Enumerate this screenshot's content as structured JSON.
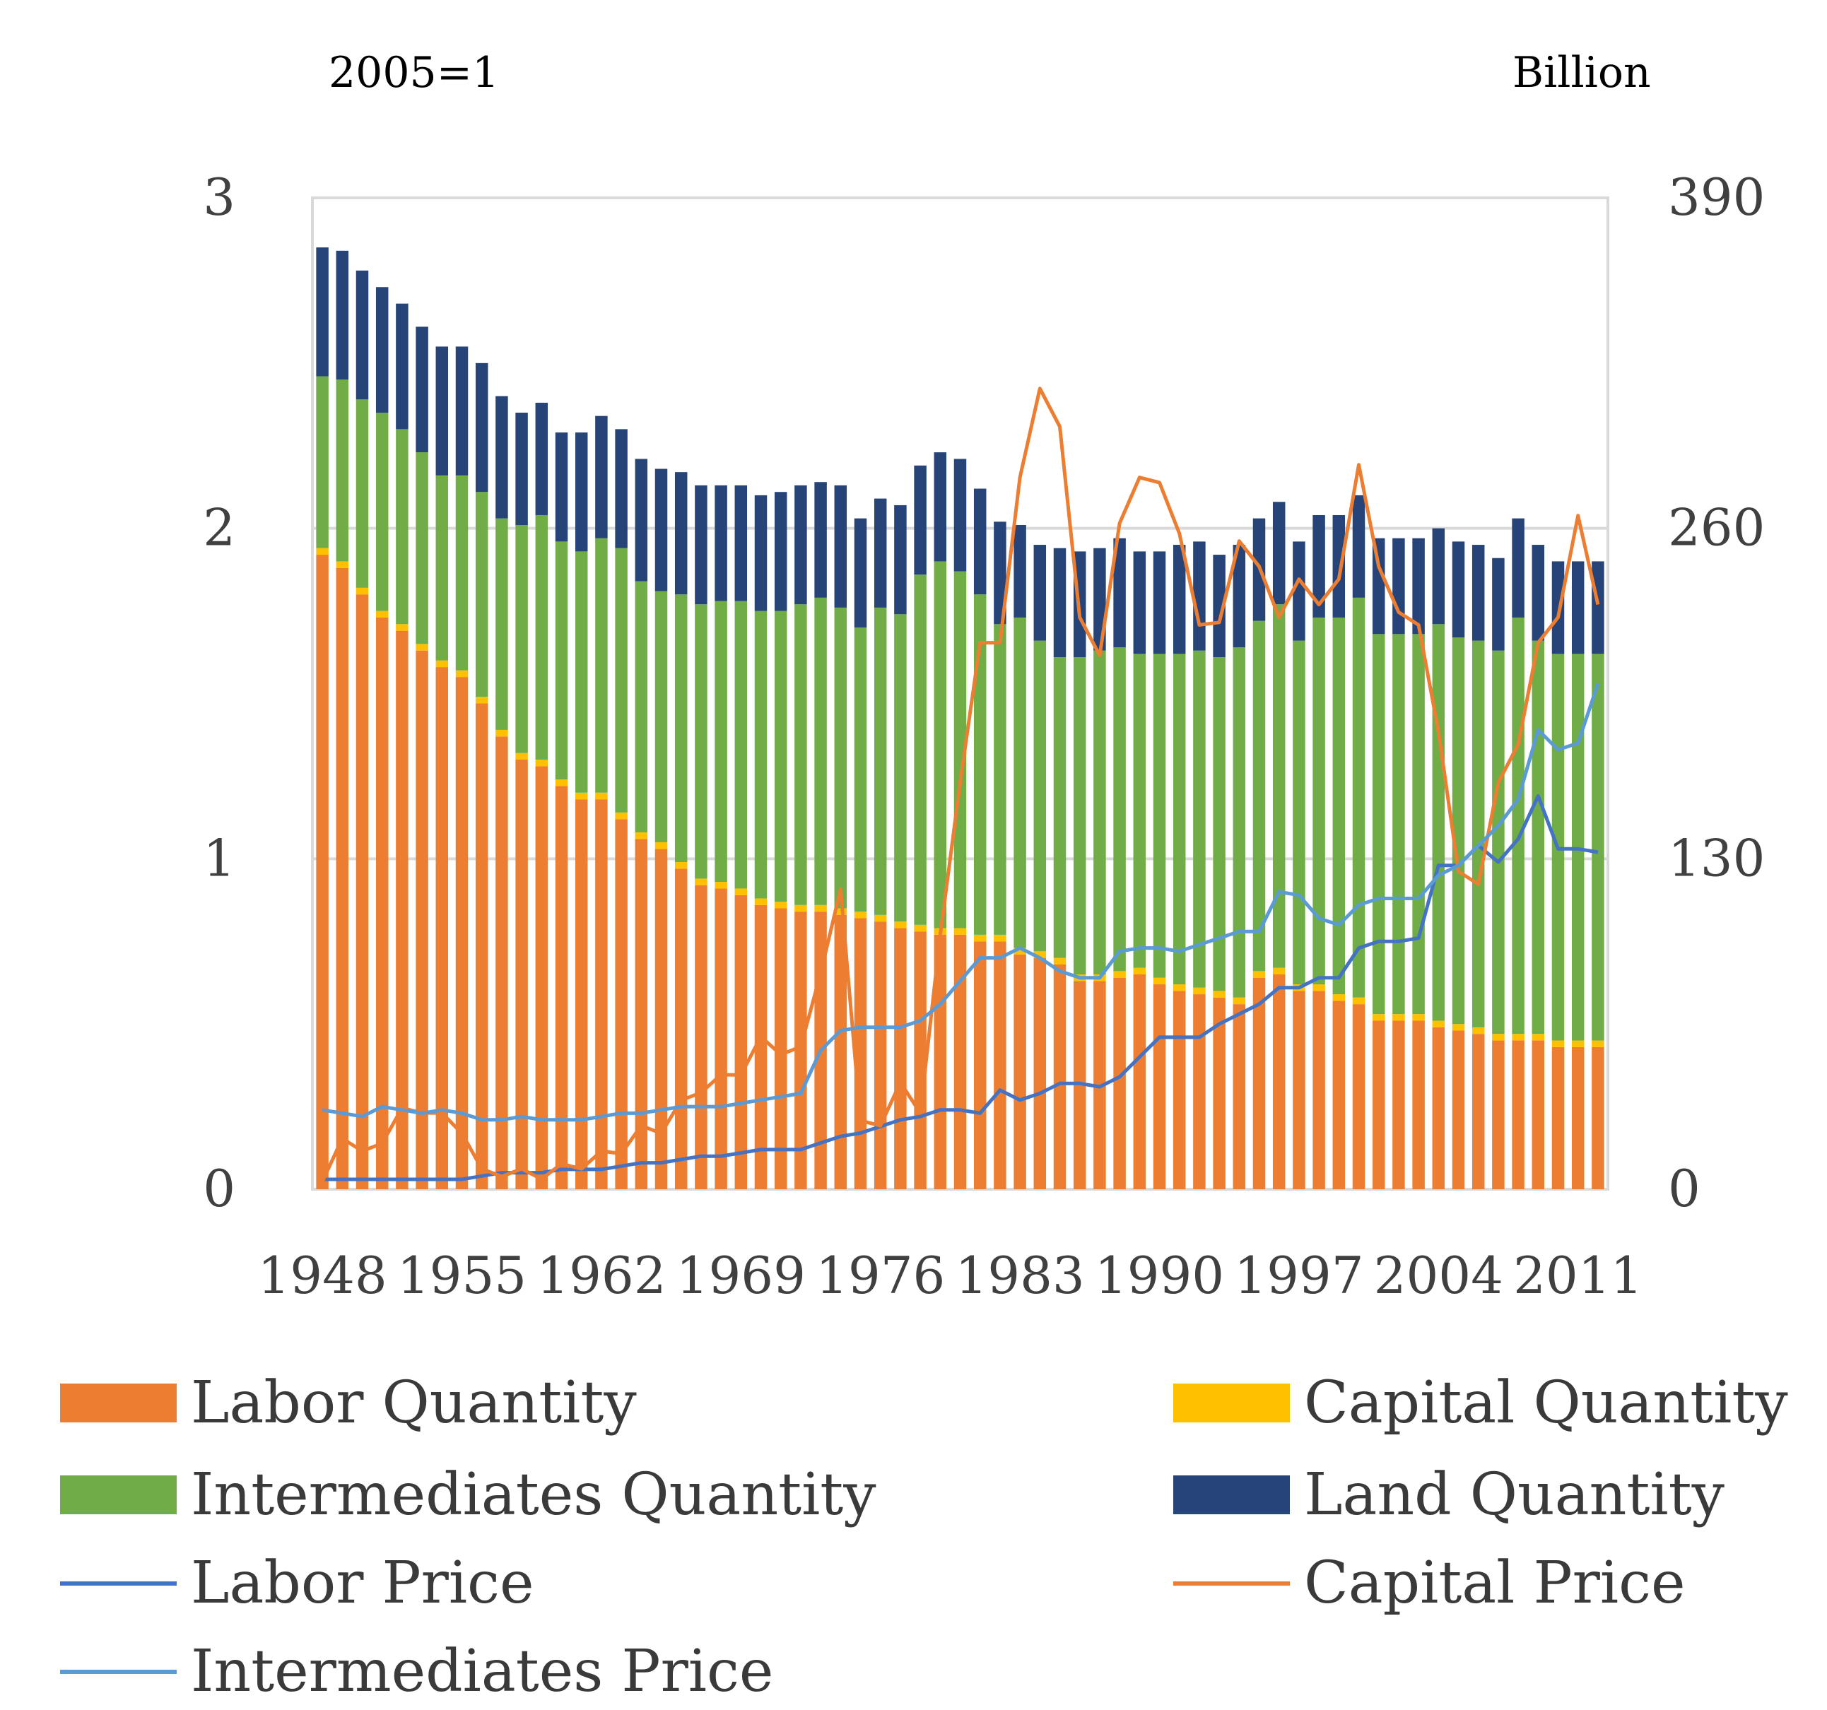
{
  "labels": {
    "left_unit": "2005=1",
    "right_unit": "Billion"
  },
  "colors": {
    "labor_qty": "#ed7d31",
    "capital_qty": "#ffc000",
    "intermediates_qty": "#70ad47",
    "land_qty": "#264478",
    "labor_price": "#4472c4",
    "capital_price": "#ed7d31",
    "intermediates_price": "#5b9bd5",
    "grid": "#d9d9d9",
    "frame": "#d9d9d9"
  },
  "chart_data": {
    "type": "bar",
    "stacked": true,
    "title": "",
    "left_axis": {
      "label": "2005=1",
      "ylim": [
        0,
        3
      ],
      "ticks": [
        "0",
        "1",
        "2",
        "3"
      ]
    },
    "right_axis": {
      "label": "Billion",
      "ylim": [
        0,
        390
      ],
      "ticks": [
        "0",
        "130",
        "260",
        "390"
      ]
    },
    "x_tick_labels": [
      "1948",
      "1955",
      "1962",
      "1969",
      "1976",
      "1983",
      "1990",
      "1997",
      "2004",
      "2011"
    ],
    "years": [
      1948,
      1949,
      1950,
      1951,
      1952,
      1953,
      1954,
      1955,
      1956,
      1957,
      1958,
      1959,
      1960,
      1961,
      1962,
      1963,
      1964,
      1965,
      1966,
      1967,
      1968,
      1969,
      1970,
      1971,
      1972,
      1973,
      1974,
      1975,
      1976,
      1977,
      1978,
      1979,
      1980,
      1981,
      1982,
      1983,
      1984,
      1985,
      1986,
      1987,
      1988,
      1989,
      1990,
      1991,
      1992,
      1993,
      1994,
      1995,
      1996,
      1997,
      1998,
      1999,
      2000,
      2001,
      2002,
      2003,
      2004,
      2005,
      2006,
      2007,
      2008,
      2009,
      2010,
      2011,
      2012
    ],
    "bar_series": [
      {
        "name": "Labor Quantity",
        "color_key": "labor_qty",
        "values": [
          1.92,
          1.88,
          1.8,
          1.73,
          1.69,
          1.63,
          1.58,
          1.55,
          1.47,
          1.37,
          1.3,
          1.28,
          1.22,
          1.18,
          1.18,
          1.12,
          1.06,
          1.03,
          0.97,
          0.92,
          0.91,
          0.89,
          0.86,
          0.85,
          0.84,
          0.84,
          0.83,
          0.82,
          0.81,
          0.79,
          0.78,
          0.77,
          0.77,
          0.75,
          0.75,
          0.71,
          0.7,
          0.68,
          0.63,
          0.63,
          0.64,
          0.65,
          0.62,
          0.6,
          0.59,
          0.58,
          0.56,
          0.64,
          0.65,
          0.6,
          0.6,
          0.57,
          0.56,
          0.51,
          0.51,
          0.51,
          0.49,
          0.48,
          0.47,
          0.45,
          0.45,
          0.45,
          0.43,
          0.43,
          0.43
        ]
      },
      {
        "name": "Capital Quantity",
        "color_key": "capital_qty",
        "values": [
          0.02,
          0.02,
          0.02,
          0.02,
          0.02,
          0.02,
          0.02,
          0.02,
          0.02,
          0.02,
          0.02,
          0.02,
          0.02,
          0.02,
          0.02,
          0.02,
          0.02,
          0.02,
          0.02,
          0.02,
          0.02,
          0.02,
          0.02,
          0.02,
          0.02,
          0.02,
          0.02,
          0.02,
          0.02,
          0.02,
          0.02,
          0.02,
          0.02,
          0.02,
          0.02,
          0.02,
          0.02,
          0.02,
          0.02,
          0.02,
          0.02,
          0.02,
          0.02,
          0.02,
          0.02,
          0.02,
          0.02,
          0.02,
          0.02,
          0.02,
          0.02,
          0.02,
          0.02,
          0.02,
          0.02,
          0.02,
          0.02,
          0.02,
          0.02,
          0.02,
          0.02,
          0.02,
          0.02,
          0.02,
          0.02
        ]
      },
      {
        "name": "Intermediates Quantity",
        "color_key": "intermediates_qty",
        "values": [
          0.52,
          0.55,
          0.57,
          0.6,
          0.59,
          0.58,
          0.56,
          0.59,
          0.62,
          0.64,
          0.69,
          0.74,
          0.72,
          0.73,
          0.77,
          0.8,
          0.76,
          0.76,
          0.81,
          0.83,
          0.85,
          0.87,
          0.87,
          0.88,
          0.91,
          0.93,
          0.91,
          0.86,
          0.93,
          0.93,
          1.06,
          1.11,
          1.08,
          1.03,
          0.94,
          1.0,
          0.94,
          0.91,
          0.96,
          0.98,
          0.98,
          0.95,
          0.98,
          1.0,
          1.02,
          1.01,
          1.06,
          1.06,
          1.1,
          1.04,
          1.11,
          1.14,
          1.21,
          1.15,
          1.15,
          1.15,
          1.2,
          1.17,
          1.17,
          1.16,
          1.26,
          1.19,
          1.17,
          1.17,
          1.17
        ]
      },
      {
        "name": "Land Quantity",
        "color_key": "land_qty",
        "values": [
          0.39,
          0.39,
          0.39,
          0.38,
          0.38,
          0.38,
          0.39,
          0.39,
          0.39,
          0.37,
          0.34,
          0.34,
          0.33,
          0.36,
          0.37,
          0.36,
          0.37,
          0.37,
          0.37,
          0.36,
          0.35,
          0.35,
          0.35,
          0.36,
          0.36,
          0.35,
          0.37,
          0.33,
          0.33,
          0.33,
          0.33,
          0.33,
          0.34,
          0.32,
          0.31,
          0.28,
          0.29,
          0.33,
          0.32,
          0.31,
          0.33,
          0.31,
          0.31,
          0.33,
          0.33,
          0.31,
          0.31,
          0.31,
          0.31,
          0.3,
          0.31,
          0.31,
          0.31,
          0.29,
          0.29,
          0.29,
          0.29,
          0.29,
          0.29,
          0.28,
          0.3,
          0.29,
          0.28,
          0.28,
          0.28
        ]
      }
    ],
    "line_series": [
      {
        "name": "Labor Price",
        "color_key": "labor_price",
        "axis": "left",
        "values": [
          0.03,
          0.03,
          0.03,
          0.03,
          0.03,
          0.03,
          0.03,
          0.03,
          0.04,
          0.05,
          0.05,
          0.05,
          0.06,
          0.06,
          0.06,
          0.07,
          0.08,
          0.08,
          0.09,
          0.1,
          0.1,
          0.11,
          0.12,
          0.12,
          0.12,
          0.14,
          0.16,
          0.17,
          0.19,
          0.21,
          0.22,
          0.24,
          0.24,
          0.23,
          0.3,
          0.27,
          0.29,
          0.32,
          0.32,
          0.31,
          0.34,
          0.4,
          0.46,
          0.46,
          0.46,
          0.5,
          0.53,
          0.56,
          0.61,
          0.61,
          0.64,
          0.64,
          0.73,
          0.75,
          0.75,
          0.76,
          0.98,
          0.98,
          1.04,
          0.99,
          1.06,
          1.19,
          1.03,
          1.03,
          1.02
        ]
      },
      {
        "name": "Capital Price",
        "color_key": "capital_price",
        "axis": "right",
        "values": [
          3,
          20,
          15,
          18,
          32,
          30,
          30,
          22,
          8,
          5,
          8,
          4,
          10,
          8,
          15,
          14,
          25,
          22,
          35,
          38,
          45,
          45,
          60,
          53,
          56,
          85,
          118,
          27,
          25,
          42,
          30,
          100,
          160,
          215,
          215,
          280,
          315,
          300,
          225,
          210,
          262,
          280,
          278,
          258,
          222,
          223,
          255,
          245,
          225,
          240,
          230,
          240,
          285,
          245,
          227,
          222,
          180,
          125,
          120,
          160,
          175,
          215,
          225,
          265,
          230
        ]
      },
      {
        "name": "Intermediates Price",
        "color_key": "intermediates_price",
        "axis": "left",
        "values": [
          0.24,
          0.23,
          0.22,
          0.25,
          0.24,
          0.23,
          0.24,
          0.23,
          0.21,
          0.21,
          0.22,
          0.21,
          0.21,
          0.21,
          0.22,
          0.23,
          0.23,
          0.24,
          0.25,
          0.25,
          0.25,
          0.26,
          0.27,
          0.28,
          0.29,
          0.42,
          0.48,
          0.49,
          0.49,
          0.49,
          0.51,
          0.56,
          0.63,
          0.7,
          0.7,
          0.73,
          0.7,
          0.66,
          0.64,
          0.64,
          0.72,
          0.73,
          0.73,
          0.72,
          0.74,
          0.76,
          0.78,
          0.78,
          0.9,
          0.89,
          0.82,
          0.8,
          0.86,
          0.88,
          0.88,
          0.88,
          0.95,
          0.98,
          1.04,
          1.1,
          1.18,
          1.39,
          1.33,
          1.35,
          1.53
        ]
      }
    ],
    "legend": [
      {
        "label": "Labor Quantity",
        "kind": "bar",
        "color_key": "labor_qty"
      },
      {
        "label": "Capital Quantity",
        "kind": "bar",
        "color_key": "capital_qty"
      },
      {
        "label": "Intermediates Quantity",
        "kind": "bar",
        "color_key": "intermediates_qty"
      },
      {
        "label": "Land Quantity",
        "kind": "bar",
        "color_key": "land_qty"
      },
      {
        "label": "Labor Price",
        "kind": "line",
        "color_key": "labor_price"
      },
      {
        "label": "Capital Price",
        "kind": "line",
        "color_key": "capital_price"
      },
      {
        "label": "Intermediates Price",
        "kind": "line",
        "color_key": "intermediates_price"
      }
    ]
  }
}
